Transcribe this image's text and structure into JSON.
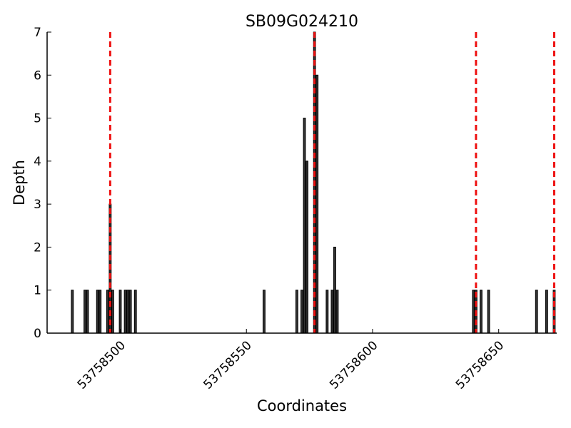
{
  "chart_data": {
    "type": "bar",
    "title": "SB09G024210",
    "xlabel": "Coordinates",
    "ylabel": "Depth",
    "xlim": [
      53758471,
      53758673
    ],
    "ylim": [
      0,
      7
    ],
    "x_ticks": [
      53758500,
      53758550,
      53758600,
      53758650
    ],
    "x_tick_labels": [
      "53758500",
      "53758550",
      "53758600",
      "53758650"
    ],
    "y_ticks": [
      0,
      1,
      2,
      3,
      4,
      5,
      6,
      7
    ],
    "y_tick_labels": [
      "0",
      "1",
      "2",
      "3",
      "4",
      "5",
      "6",
      "7"
    ],
    "grid": false,
    "bars": [
      {
        "x": 53758481,
        "depth": 1
      },
      {
        "x": 53758486,
        "depth": 1
      },
      {
        "x": 53758487,
        "depth": 1
      },
      {
        "x": 53758491,
        "depth": 1
      },
      {
        "x": 53758492,
        "depth": 1
      },
      {
        "x": 53758495,
        "depth": 1
      },
      {
        "x": 53758496,
        "depth": 3
      },
      {
        "x": 53758497,
        "depth": 1
      },
      {
        "x": 53758500,
        "depth": 1
      },
      {
        "x": 53758502,
        "depth": 1
      },
      {
        "x": 53758503,
        "depth": 1
      },
      {
        "x": 53758504,
        "depth": 1
      },
      {
        "x": 53758506,
        "depth": 1
      },
      {
        "x": 53758557,
        "depth": 1
      },
      {
        "x": 53758570,
        "depth": 1
      },
      {
        "x": 53758572,
        "depth": 1
      },
      {
        "x": 53758573,
        "depth": 5
      },
      {
        "x": 53758574,
        "depth": 4
      },
      {
        "x": 53758577,
        "depth": 7
      },
      {
        "x": 53758578,
        "depth": 6
      },
      {
        "x": 53758582,
        "depth": 1
      },
      {
        "x": 53758584,
        "depth": 1
      },
      {
        "x": 53758585,
        "depth": 2
      },
      {
        "x": 53758586,
        "depth": 1
      },
      {
        "x": 53758640,
        "depth": 1
      },
      {
        "x": 53758641,
        "depth": 1
      },
      {
        "x": 53758643,
        "depth": 1
      },
      {
        "x": 53758646,
        "depth": 1
      },
      {
        "x": 53758665,
        "depth": 1
      },
      {
        "x": 53758669,
        "depth": 1
      },
      {
        "x": 53758672,
        "depth": 1
      }
    ],
    "bar_color": "#333333",
    "bar_edge_color": "#000000",
    "vlines": [
      53758496,
      53758577,
      53758641,
      53758672
    ],
    "vline_color": "#ee1111",
    "vline_style": "dashed"
  }
}
